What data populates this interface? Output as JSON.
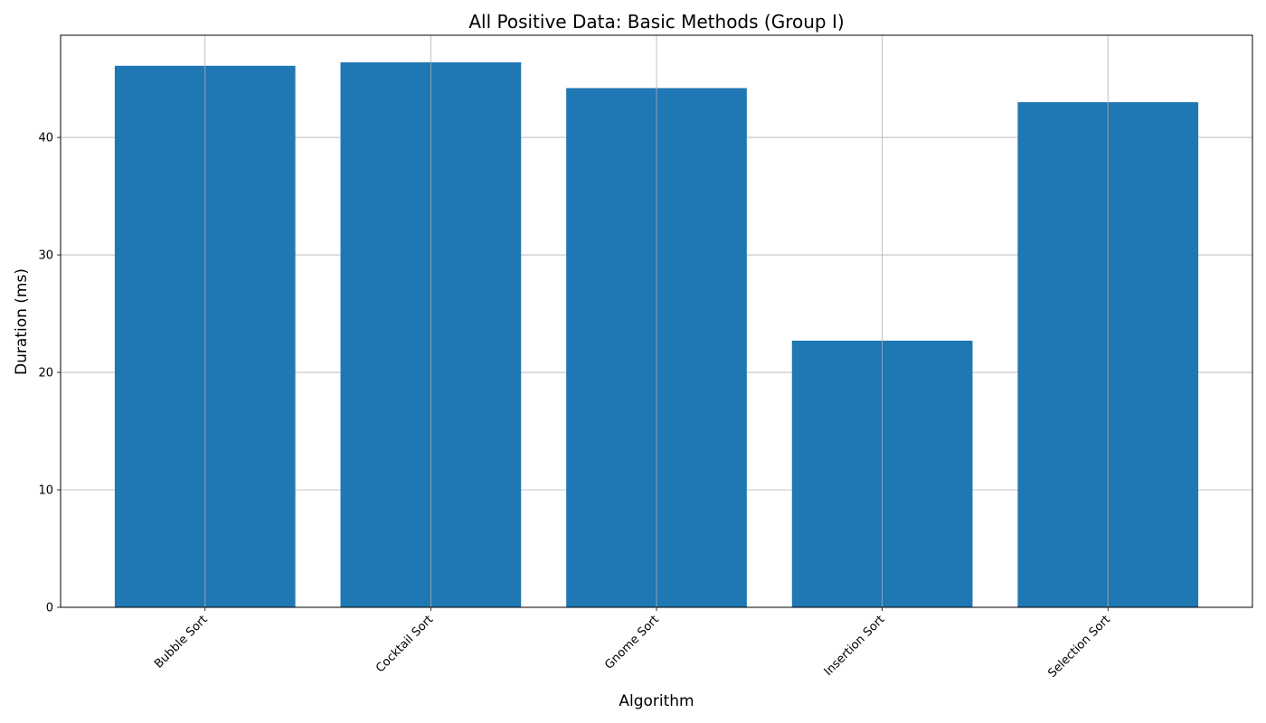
{
  "chart_data": {
    "type": "bar",
    "title": "All Positive Data: Basic Methods (Group I)",
    "xlabel": "Algorithm",
    "ylabel": "Duration (ms)",
    "categories": [
      "Bubble Sort",
      "Cocktail Sort",
      "Gnome Sort",
      "Insertion Sort",
      "Selection Sort"
    ],
    "values": [
      46.1,
      46.4,
      44.2,
      22.7,
      43.0
    ],
    "ylim": [
      0,
      48.7
    ],
    "yticks": [
      0,
      10,
      20,
      30,
      40
    ],
    "grid": true,
    "bar_color": "#1f77b4"
  }
}
